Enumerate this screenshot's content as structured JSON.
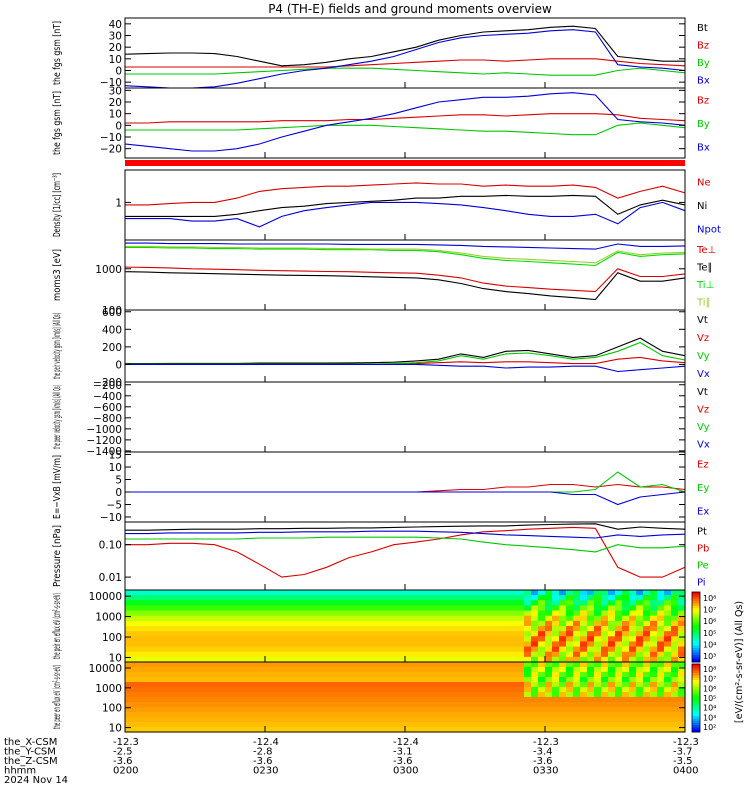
{
  "title": "P4 (TH-E) fields and ground moments overview",
  "footer": {
    "row_labels": [
      "the_X-CSM",
      "the_Y-CSM",
      "the_Z-CSM",
      "hhmm",
      "2024 Nov 14"
    ],
    "columns": [
      {
        "x": "-12.3",
        "y": "-2.5",
        "z": "-3.6",
        "t": "0200"
      },
      {
        "x": "-12.4",
        "y": "-2.8",
        "z": "-3.6",
        "t": "0230"
      },
      {
        "x": "-12.4",
        "y": "-3.1",
        "z": "-3.6",
        "t": "0300"
      },
      {
        "x": "-12.3",
        "y": "-3.4",
        "z": "-3.6",
        "t": "0330"
      },
      {
        "x": "-12.3",
        "y": "-3.7",
        "z": "-3.5",
        "t": "0400"
      }
    ]
  },
  "colorbars": [
    {
      "labels": [
        "10⁸",
        "10⁷",
        "10⁶",
        "10⁵",
        "10⁴",
        "10³"
      ]
    },
    {
      "labels": [
        "10⁸",
        "10⁷",
        "10⁶",
        "10⁵",
        "10⁴",
        "10³",
        "10²"
      ]
    }
  ],
  "colorbar_title": "[eV/(cm²-s-sr-eV)] (All Qs)",
  "chart_data": [
    {
      "type": "line",
      "ylabel": "the fgs gsm [nT]",
      "ylim": [
        -15,
        45
      ],
      "yticks": [
        -10,
        0,
        10,
        20,
        30,
        40
      ],
      "tick_labels": [
        "−10",
        "0",
        "10",
        "20",
        "30",
        "40"
      ],
      "grid": false,
      "series": [
        {
          "name": "Bt",
          "color": "#000000",
          "values": [
            14,
            14.5,
            15,
            15,
            14.5,
            12,
            8,
            4,
            5,
            7,
            10,
            12,
            16,
            20,
            26,
            30,
            33,
            34,
            35,
            37,
            38,
            36,
            12,
            10,
            8,
            8
          ]
        },
        {
          "name": "Bz",
          "color": "#d80000",
          "values": [
            3,
            3,
            3,
            3,
            3,
            3,
            3,
            3,
            3,
            3,
            4,
            5,
            6,
            7,
            8,
            9,
            9,
            8,
            9,
            10,
            10,
            10,
            8,
            6,
            5,
            4
          ]
        },
        {
          "name": "By",
          "color": "#00c800",
          "values": [
            -3,
            -3,
            -3,
            -3,
            -3,
            -2,
            -1,
            0,
            1,
            2,
            2,
            2,
            1,
            0,
            -1,
            -2,
            -3,
            -2,
            -3,
            -4,
            -4,
            -4,
            0,
            2,
            0,
            -2
          ]
        },
        {
          "name": "Bx",
          "color": "#0000d8",
          "values": [
            -13,
            -14,
            -15,
            -15,
            -14,
            -11,
            -7,
            -3,
            0,
            2,
            5,
            8,
            12,
            18,
            24,
            28,
            30,
            31,
            32,
            34,
            35,
            33,
            5,
            3,
            2,
            0
          ]
        }
      ]
    },
    {
      "type": "line",
      "ylabel": "the fgs gsm [nT]",
      "ylim": [
        -28,
        32
      ],
      "yticks": [
        -20,
        -10,
        0,
        10,
        20,
        30
      ],
      "tick_labels": [
        "−20",
        "−10",
        "0",
        "10",
        "20",
        "30"
      ],
      "grid": false,
      "series": [
        {
          "name": "Bz",
          "color": "#d80000",
          "values": [
            2,
            2,
            3,
            3,
            3,
            3,
            3,
            4,
            4,
            4,
            5,
            5,
            6,
            7,
            8,
            9,
            9,
            8,
            9,
            10,
            10,
            10,
            9,
            6,
            5,
            4
          ]
        },
        {
          "name": "By",
          "color": "#00c800",
          "values": [
            -4,
            -4,
            -4,
            -4,
            -4,
            -4,
            -3,
            -2,
            -1,
            0,
            0,
            0,
            -1,
            -2,
            -3,
            -4,
            -5,
            -5,
            -6,
            -7,
            -8,
            -8,
            0,
            2,
            0,
            -2
          ]
        },
        {
          "name": "Bx",
          "color": "#0000d8",
          "values": [
            -16,
            -18,
            -20,
            -22,
            -22,
            -20,
            -16,
            -10,
            -5,
            0,
            3,
            6,
            10,
            15,
            20,
            22,
            24,
            24,
            25,
            27,
            28,
            26,
            5,
            3,
            2,
            0
          ]
        }
      ]
    },
    {
      "type": "line",
      "ylabel": "Density [1/cc] [cm⁻³]",
      "ylim": [
        0.2,
        4
      ],
      "yscale": "log",
      "yticks": [
        1
      ],
      "tick_labels": [
        "1"
      ],
      "grid": false,
      "series": [
        {
          "name": "Ne",
          "color": "#d80000",
          "values": [
            0.9,
            0.9,
            0.95,
            1.0,
            1.0,
            1.2,
            1.6,
            1.8,
            1.9,
            2.0,
            2.0,
            2.1,
            2.2,
            2.3,
            2.2,
            2.2,
            2.0,
            2.1,
            2.0,
            2.0,
            2.1,
            1.9,
            1.2,
            1.6,
            2.0,
            1.5
          ]
        },
        {
          "name": "Ni",
          "color": "#000000",
          "values": [
            0.55,
            0.55,
            0.55,
            0.55,
            0.55,
            0.6,
            0.7,
            0.8,
            0.85,
            0.95,
            1.0,
            1.05,
            1.1,
            1.2,
            1.2,
            1.3,
            1.3,
            1.35,
            1.3,
            1.3,
            1.35,
            1.3,
            0.6,
            0.9,
            1.1,
            0.9
          ]
        },
        {
          "name": "Npot",
          "color": "#0000d8",
          "values": [
            0.5,
            0.5,
            0.5,
            0.45,
            0.45,
            0.5,
            0.35,
            0.55,
            0.7,
            0.8,
            0.9,
            1.0,
            1.0,
            1.0,
            0.95,
            0.9,
            0.8,
            0.7,
            0.6,
            0.55,
            0.55,
            0.6,
            0.4,
            0.8,
            1.0,
            0.7
          ]
        }
      ]
    },
    {
      "type": "line",
      "ylabel": "moms3 [eV]",
      "ylim": [
        100,
        5000
      ],
      "yscale": "log",
      "yticks": [
        100,
        1000
      ],
      "tick_labels": [
        "100",
        "1000"
      ],
      "grid": false,
      "series": [
        {
          "name": "Te⊥",
          "color": "#d80000",
          "values": [
            1100,
            1080,
            1050,
            1000,
            980,
            950,
            920,
            900,
            880,
            860,
            850,
            820,
            800,
            780,
            700,
            600,
            450,
            380,
            350,
            320,
            300,
            280,
            1000,
            650,
            650,
            750
          ]
        },
        {
          "name": "Te∥",
          "color": "#000000",
          "values": [
            850,
            830,
            800,
            780,
            760,
            740,
            720,
            700,
            690,
            680,
            660,
            640,
            620,
            600,
            540,
            440,
            330,
            280,
            250,
            220,
            200,
            180,
            800,
            500,
            500,
            600
          ]
        },
        {
          "name": "Ti⊥",
          "color": "#00e000",
          "values": [
            3300,
            3300,
            3200,
            3200,
            3100,
            3100,
            3000,
            3000,
            3000,
            2900,
            2900,
            2900,
            2800,
            2800,
            2600,
            2200,
            1800,
            1600,
            1500,
            1400,
            1300,
            1200,
            2500,
            2000,
            2200,
            2300
          ]
        },
        {
          "name": "Ti∥",
          "color": "#9acd32",
          "values": [
            3500,
            3500,
            3400,
            3400,
            3300,
            3300,
            3200,
            3200,
            3200,
            3100,
            3100,
            3000,
            3000,
            3000,
            2800,
            2400,
            2000,
            1800,
            1700,
            1600,
            1500,
            1400,
            2700,
            2200,
            2400,
            2500
          ]
        },
        {
          "name": "",
          "color": "#0000d8",
          "values": [
            4200,
            4200,
            4100,
            4100,
            4100,
            4000,
            4000,
            4000,
            4000,
            4000,
            3900,
            3900,
            3900,
            3900,
            3800,
            3700,
            3500,
            3400,
            3300,
            3200,
            3100,
            3000,
            4000,
            3500,
            3500,
            3600
          ]
        }
      ]
    },
    {
      "type": "line",
      "ylabel": "the peir velocity gsm [km/s] (All Qs)",
      "ylim": [
        -200,
        620
      ],
      "yticks": [
        -200,
        0,
        200,
        400,
        600
      ],
      "tick_labels": [
        "−200",
        "0",
        "200",
        "400",
        "600"
      ],
      "grid": false,
      "series": [
        {
          "name": "Vt",
          "color": "#000000",
          "values": [
            10,
            10,
            12,
            12,
            12,
            12,
            15,
            15,
            15,
            15,
            18,
            20,
            25,
            40,
            60,
            120,
            80,
            150,
            160,
            120,
            80,
            100,
            200,
            300,
            150,
            100
          ]
        },
        {
          "name": "Vz",
          "color": "#d80000",
          "values": [
            0,
            0,
            0,
            0,
            0,
            0,
            0,
            0,
            0,
            0,
            0,
            0,
            5,
            10,
            20,
            30,
            20,
            30,
            30,
            20,
            10,
            10,
            60,
            80,
            40,
            20
          ]
        },
        {
          "name": "Vy",
          "color": "#00c800",
          "values": [
            5,
            5,
            5,
            5,
            5,
            5,
            5,
            5,
            5,
            5,
            5,
            5,
            10,
            20,
            40,
            100,
            60,
            120,
            130,
            100,
            60,
            80,
            150,
            250,
            100,
            50
          ]
        },
        {
          "name": "Vx",
          "color": "#0000d8",
          "values": [
            0,
            0,
            0,
            0,
            0,
            0,
            0,
            0,
            0,
            0,
            0,
            0,
            0,
            0,
            -10,
            -20,
            -20,
            -40,
            -30,
            -30,
            -20,
            -20,
            -80,
            -60,
            -40,
            -20
          ]
        }
      ]
    },
    {
      "type": "line",
      "ylabel": "the peer velocity gsm [km/s] (All Qs)",
      "ylim": [
        -1420,
        -150
      ],
      "yticks": [
        -200,
        -400,
        -600,
        -800,
        -1000,
        -1200,
        -1400
      ],
      "tick_labels": [
        "−200",
        "−400",
        "−600",
        "−800",
        "−1000",
        "−1200",
        "−1400"
      ],
      "grid": false,
      "series": [
        {
          "name": "Vt",
          "color": "#000000",
          "values": []
        },
        {
          "name": "Vz",
          "color": "#d80000",
          "values": []
        },
        {
          "name": "Vy",
          "color": "#00c800",
          "values": []
        },
        {
          "name": "Vx",
          "color": "#0000d8",
          "values": []
        }
      ]
    },
    {
      "type": "line",
      "ylabel": "E=−VxB [mV/m]",
      "ylim": [
        -12,
        16
      ],
      "yticks": [
        -10,
        -5,
        0,
        5,
        10,
        15
      ],
      "tick_labels": [
        "−10",
        "−5",
        "0",
        "5",
        "10",
        "15"
      ],
      "grid": false,
      "series": [
        {
          "name": "Ez",
          "color": "#d80000",
          "values": [
            0,
            0,
            0,
            0,
            0,
            0,
            0,
            0,
            0,
            0,
            0,
            0,
            0,
            0,
            0.5,
            1,
            1,
            2,
            2,
            3,
            3,
            2,
            3,
            2,
            2,
            1
          ]
        },
        {
          "name": "Ey",
          "color": "#00c800",
          "values": [
            0,
            0,
            0,
            0,
            0,
            0,
            0,
            0,
            0,
            0,
            0,
            0,
            0,
            0,
            0,
            0,
            0,
            0,
            0,
            0,
            0,
            1,
            8,
            2,
            3,
            0
          ]
        },
        {
          "name": "Ex",
          "color": "#0000d8",
          "values": [
            0,
            0,
            0,
            0,
            0,
            0,
            0,
            0,
            0,
            0,
            0,
            0,
            0,
            0,
            0,
            0,
            0,
            0,
            0,
            0,
            -1,
            -1,
            -5,
            -2,
            -1,
            0
          ]
        }
      ]
    },
    {
      "type": "line",
      "ylabel": "Pressure [nPa]",
      "ylim": [
        0.004,
        0.5
      ],
      "yscale": "log",
      "yticks": [
        0.01,
        0.1
      ],
      "tick_labels": [
        "0.01",
        "0.10"
      ],
      "grid": false,
      "series": [
        {
          "name": "Pt",
          "color": "#000000",
          "values": [
            0.28,
            0.28,
            0.29,
            0.3,
            0.3,
            0.3,
            0.31,
            0.31,
            0.32,
            0.32,
            0.33,
            0.33,
            0.34,
            0.35,
            0.36,
            0.37,
            0.38,
            0.38,
            0.4,
            0.42,
            0.43,
            0.44,
            0.3,
            0.35,
            0.32,
            0.3
          ]
        },
        {
          "name": "Pb",
          "color": "#d80000",
          "values": [
            0.1,
            0.1,
            0.11,
            0.11,
            0.1,
            0.06,
            0.025,
            0.01,
            0.012,
            0.02,
            0.04,
            0.06,
            0.1,
            0.12,
            0.15,
            0.2,
            0.25,
            0.27,
            0.3,
            0.32,
            0.34,
            0.32,
            0.02,
            0.01,
            0.01,
            0.02
          ]
        },
        {
          "name": "Pe",
          "color": "#00c800",
          "values": [
            0.15,
            0.15,
            0.15,
            0.15,
            0.15,
            0.15,
            0.16,
            0.16,
            0.16,
            0.17,
            0.17,
            0.17,
            0.17,
            0.17,
            0.16,
            0.15,
            0.12,
            0.1,
            0.09,
            0.08,
            0.07,
            0.06,
            0.1,
            0.08,
            0.08,
            0.09
          ]
        },
        {
          "name": "Pi",
          "color": "#0000d8",
          "values": [
            0.22,
            0.22,
            0.23,
            0.23,
            0.23,
            0.23,
            0.24,
            0.24,
            0.25,
            0.25,
            0.25,
            0.26,
            0.26,
            0.26,
            0.25,
            0.24,
            0.22,
            0.2,
            0.19,
            0.18,
            0.17,
            0.16,
            0.2,
            0.18,
            0.2,
            0.21
          ]
        }
      ]
    },
    {
      "type": "heatmap",
      "ylabel": "the peir en eflux eV (cm²-s-sr-eV)",
      "yscale": "log",
      "ylim": [
        6,
        20000
      ],
      "yticks": [
        10,
        100,
        1000,
        10000
      ],
      "tick_labels": [
        "10",
        "100",
        "1000",
        "10000"
      ]
    },
    {
      "type": "heatmap",
      "ylabel": "the peer en eflux eV (cm²-s-sr-eV)",
      "yscale": "log",
      "ylim": [
        6,
        20000
      ],
      "yticks": [
        10,
        100,
        1000,
        10000
      ],
      "tick_labels": [
        "10",
        "100",
        "1000",
        "10000"
      ]
    }
  ]
}
